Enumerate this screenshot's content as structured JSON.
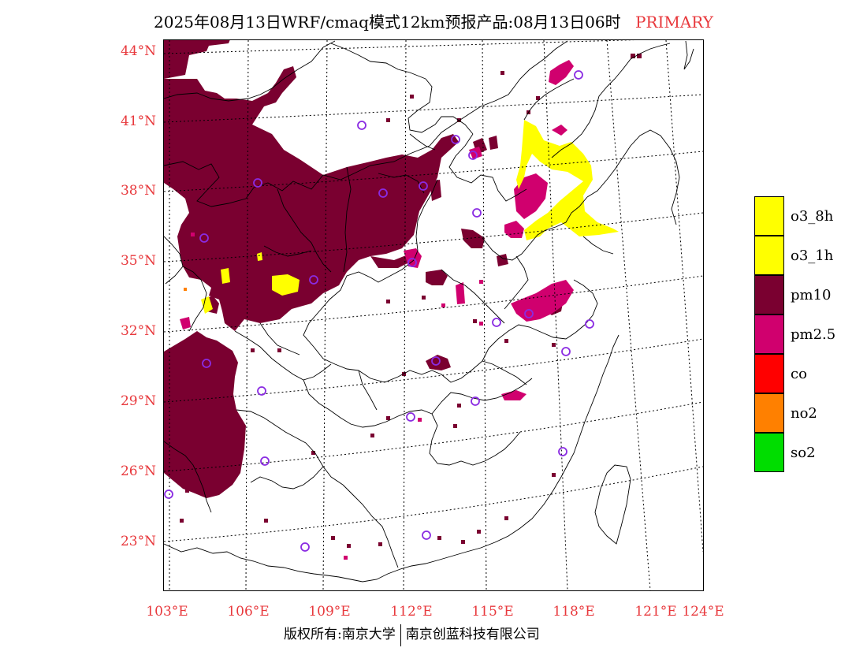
{
  "title": {
    "text": "2025年08月13日WRF/cmaq模式12km预报产品:08月13日06时",
    "tag": "PRIMARY"
  },
  "axes": {
    "lat_labels": [
      "44°N",
      "41°N",
      "38°N",
      "35°N",
      "32°N",
      "29°N",
      "26°N",
      "23°N"
    ],
    "lon_labels": [
      "103°E",
      "106°E",
      "109°E",
      "112°E",
      "115°E",
      "118°E",
      "121°E",
      "124°E"
    ]
  },
  "legend": [
    {
      "label": "o3_8h",
      "color": "#ffff00"
    },
    {
      "label": "o3_1h",
      "color": "#ffff00"
    },
    {
      "label": "pm10",
      "color": "#7a0030"
    },
    {
      "label": "pm2.5",
      "color": "#d0006e"
    },
    {
      "label": "co",
      "color": "#ff0000"
    },
    {
      "label": "no2",
      "color": "#ff8000"
    },
    {
      "label": "so2",
      "color": "#00dd00"
    }
  ],
  "copyright": {
    "left": "版权所有:南京大学",
    "right": "南京创蓝科技有限公司"
  },
  "colors": {
    "pm10": "#7a0030",
    "pm25": "#d0006e",
    "o3": "#ffff00",
    "station": "#8a2be2",
    "label": "#e8393d"
  }
}
